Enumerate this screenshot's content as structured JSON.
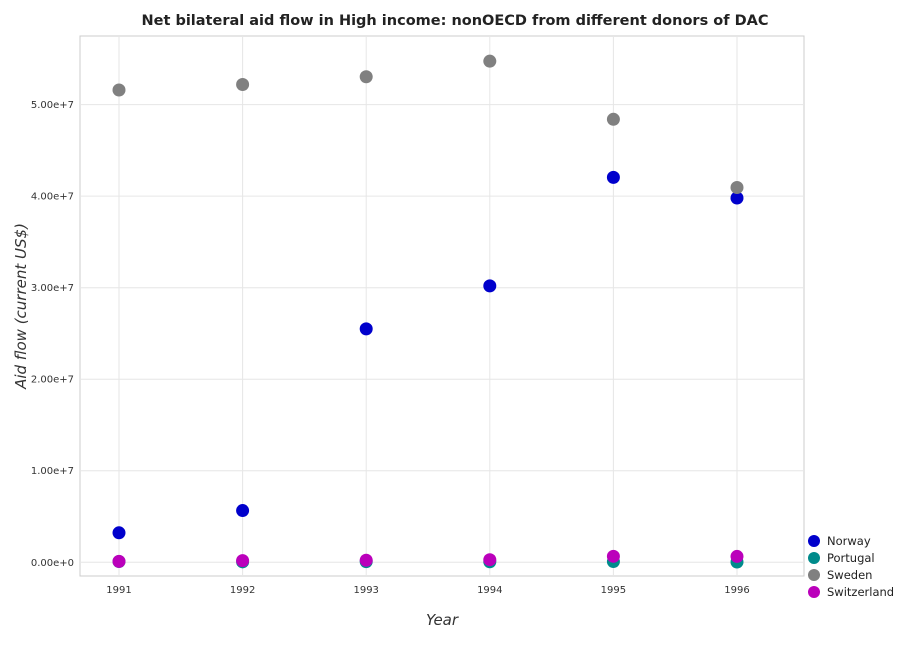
{
  "chart_data": {
    "type": "scatter",
    "title": "Net bilateral aid flow in High income: nonOECD from different donors of DAC",
    "xlabel": "Year",
    "ylabel": "Aid flow (current US$)",
    "categories": [
      "1991",
      "1992",
      "1993",
      "1994",
      "1995",
      "1996"
    ],
    "y_ticks": [
      "0.00e+0",
      "1.00e+7",
      "2.00e+7",
      "3.00e+7",
      "4.00e+7",
      "5.00e+7"
    ],
    "ylim": [
      -1500000,
      57500000
    ],
    "legend_position": "bottom-right",
    "grid": true,
    "series": [
      {
        "name": "Norway",
        "color": "#0000cc",
        "values": [
          3220000,
          5650000,
          25500000,
          30200000,
          42050000,
          39800000
        ]
      },
      {
        "name": "Portugal",
        "color": "#008b8b",
        "values": [
          80000,
          50000,
          70000,
          60000,
          80000,
          30000
        ]
      },
      {
        "name": "Sweden",
        "color": "#808080",
        "values": [
          51600000,
          52200000,
          53050000,
          54750000,
          48400000,
          40950000
        ]
      },
      {
        "name": "Switzerland",
        "color": "#bb00bb",
        "values": [
          100000,
          180000,
          220000,
          280000,
          650000,
          640000
        ]
      }
    ]
  }
}
